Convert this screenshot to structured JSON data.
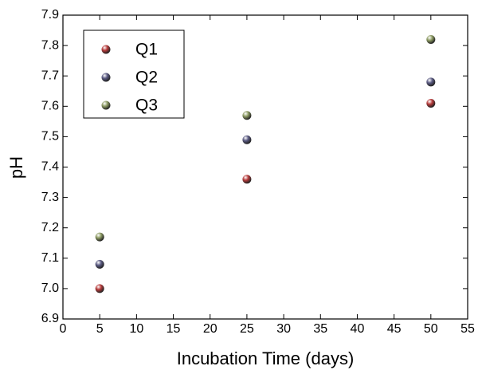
{
  "chart_data": {
    "type": "scatter",
    "x_label": "Incubation Time (days)",
    "y_label": "pH",
    "series": [
      {
        "name": "Q1",
        "color": "#b83c3c",
        "x": [
          5,
          25,
          50
        ],
        "values": [
          7.0,
          7.36,
          7.61
        ]
      },
      {
        "name": "Q2",
        "color": "#5c5c84",
        "x": [
          5,
          25,
          50
        ],
        "values": [
          7.08,
          7.49,
          7.68
        ]
      },
      {
        "name": "Q3",
        "color": "#8e9c64",
        "x": [
          5,
          25,
          50
        ],
        "values": [
          7.17,
          7.57,
          7.82
        ]
      }
    ],
    "xlim": [
      0,
      55
    ],
    "xticks": [
      0,
      5,
      10,
      15,
      20,
      25,
      30,
      35,
      40,
      45,
      50,
      55
    ],
    "ylim": [
      6.9,
      7.9
    ],
    "yticks": [
      6.9,
      {
        "value": 7,
        "label": "7.0"
      },
      7.1,
      7.2,
      7.3,
      7.4,
      7.5,
      7.6,
      7.7,
      7.8,
      7.9
    ],
    "legend": "upper left"
  }
}
